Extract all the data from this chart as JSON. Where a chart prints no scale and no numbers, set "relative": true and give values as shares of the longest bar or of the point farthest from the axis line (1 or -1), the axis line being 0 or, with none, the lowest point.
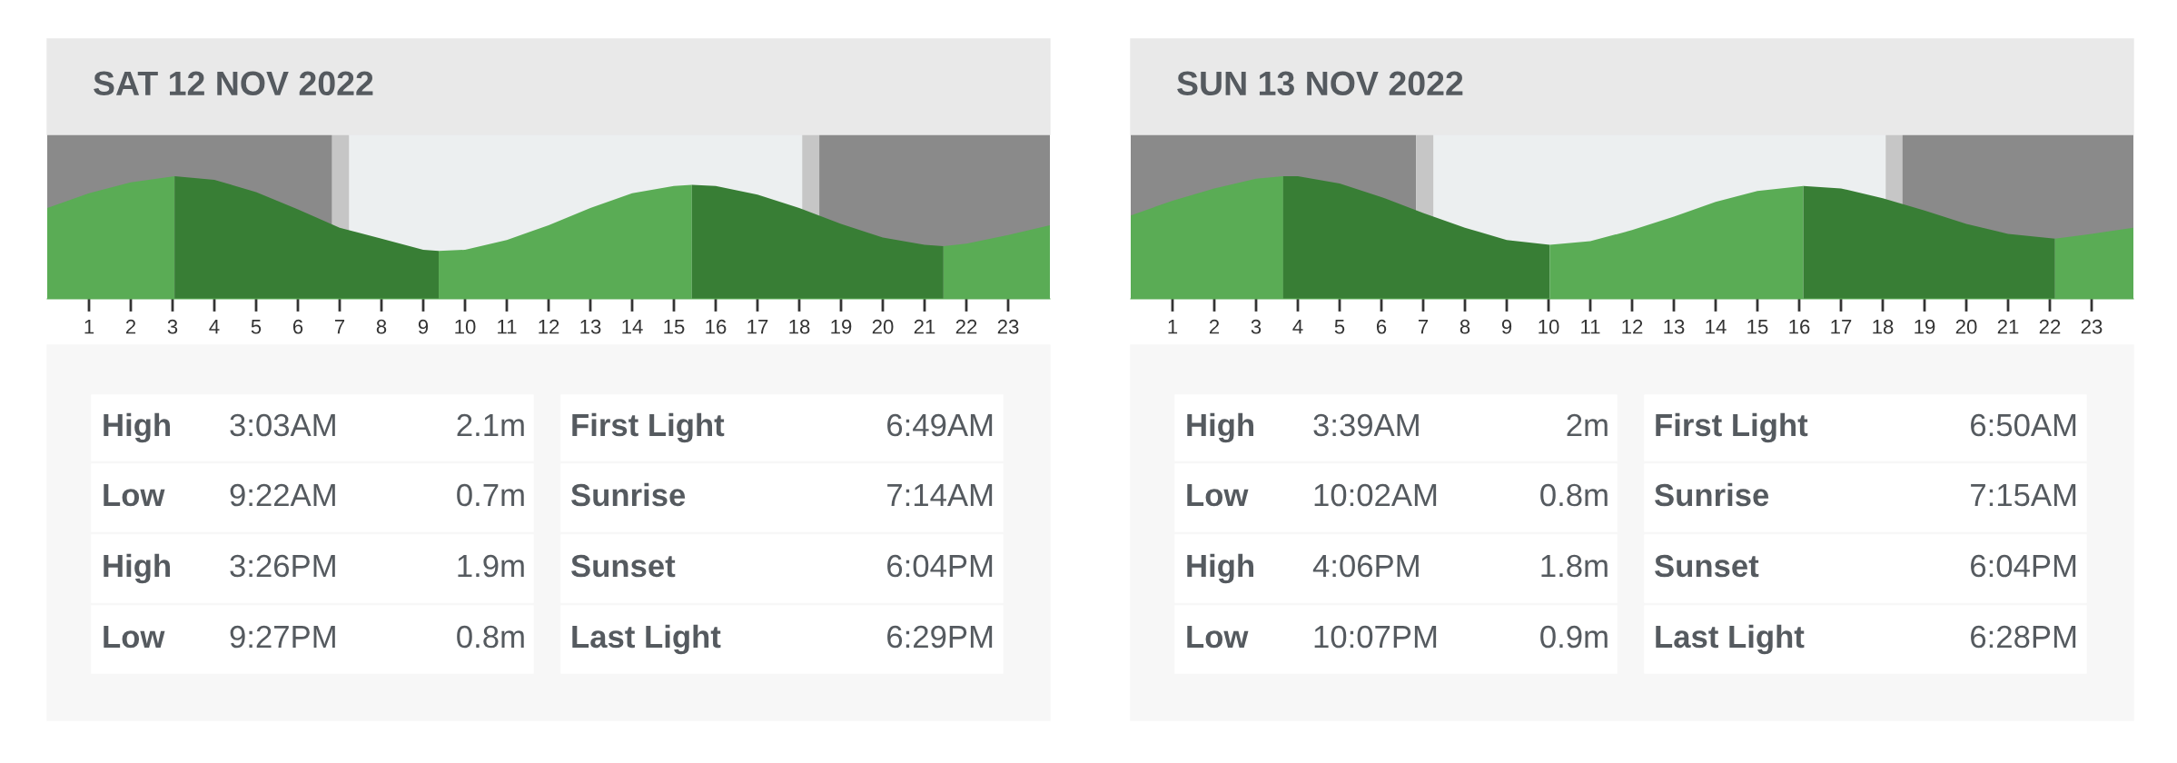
{
  "chart_data": [
    {
      "type": "area",
      "title": "SAT 12 NOV 2022",
      "relative": true,
      "xlim": [
        0,
        24
      ],
      "xticks": [
        1,
        2,
        3,
        4,
        5,
        6,
        7,
        8,
        9,
        10,
        11,
        12,
        13,
        14,
        15,
        16,
        17,
        18,
        19,
        20,
        21,
        22,
        23
      ],
      "tick_labels": "x",
      "series": [
        {
          "color": "#5aac55",
          "x": [
            0,
            1,
            2,
            3.05
          ],
          "values": [
            0.74,
            0.86,
            0.95,
            1
          ]
        },
        {
          "color": "#387e35",
          "x": [
            3.05,
            4,
            5,
            6,
            7,
            8,
            9,
            9.37
          ],
          "values": [
            1,
            0.97,
            0.87,
            0.73,
            0.58,
            0.49,
            0.4,
            0.39
          ]
        },
        {
          "color": "#5aac55",
          "x": [
            9.37,
            10,
            11,
            12,
            13,
            14,
            15,
            15.43
          ],
          "values": [
            0.39,
            0.4,
            0.48,
            0.6,
            0.74,
            0.86,
            0.92,
            0.93
          ]
        },
        {
          "color": "#387e35",
          "x": [
            15.43,
            16,
            17,
            18,
            19,
            20,
            21,
            21.45
          ],
          "values": [
            0.93,
            0.92,
            0.85,
            0.74,
            0.61,
            0.5,
            0.44,
            0.43
          ]
        },
        {
          "color": "#5aac55",
          "x": [
            21.45,
            22,
            23,
            24
          ],
          "values": [
            0.43,
            0.45,
            0.52,
            0.6
          ]
        }
      ],
      "bands": [
        {
          "axis": "x",
          "from": 0,
          "to": 6.82,
          "color": "#8a8a8a"
        },
        {
          "axis": "x",
          "from": 6.82,
          "to": 7.23,
          "color": "#c6c6c6"
        },
        {
          "axis": "x",
          "from": 7.23,
          "to": 18.07,
          "color": "#eceff0"
        },
        {
          "axis": "x",
          "from": 18.07,
          "to": 18.48,
          "color": "#c6c6c6"
        },
        {
          "axis": "x",
          "from": 18.48,
          "to": 24,
          "color": "#8a8a8a"
        }
      ],
      "annotations": [
        "High",
        "3:03AM",
        "2.1m",
        "Low",
        "9:22AM",
        "0.7m",
        "High",
        "3:26PM",
        "1.9m",
        "Low",
        "9:27PM",
        "0.8m",
        "First Light",
        "6:49AM",
        "Sunrise",
        "7:14AM",
        "Sunset",
        "6:04PM",
        "Last Light",
        "6:29PM"
      ]
    },
    {
      "type": "area",
      "title": "SUN 13 NOV 2022",
      "relative": true,
      "xlim": [
        0,
        24
      ],
      "xticks": [
        1,
        2,
        3,
        4,
        5,
        6,
        7,
        8,
        9,
        10,
        11,
        12,
        13,
        14,
        15,
        16,
        17,
        18,
        19,
        20,
        21,
        22,
        23
      ],
      "tick_labels": "x",
      "series": [
        {
          "color": "#5aac55",
          "x": [
            0,
            1,
            2,
            3,
            3.65
          ],
          "values": [
            0.68,
            0.8,
            0.9,
            0.98,
            1
          ]
        },
        {
          "color": "#387e35",
          "x": [
            3.65,
            4,
            5,
            6,
            7,
            8,
            9,
            10.03
          ],
          "values": [
            1,
            1,
            0.94,
            0.83,
            0.7,
            0.58,
            0.48,
            0.44
          ]
        },
        {
          "color": "#5aac55",
          "x": [
            10.03,
            11,
            12,
            13,
            14,
            15,
            16.1
          ],
          "values": [
            0.44,
            0.47,
            0.56,
            0.67,
            0.79,
            0.88,
            0.92
          ]
        },
        {
          "color": "#387e35",
          "x": [
            16.1,
            17,
            18,
            19,
            20,
            21,
            22.12
          ],
          "values": [
            0.92,
            0.9,
            0.82,
            0.72,
            0.61,
            0.53,
            0.49
          ]
        },
        {
          "color": "#5aac55",
          "x": [
            22.12,
            23,
            24
          ],
          "values": [
            0.49,
            0.53,
            0.58
          ]
        }
      ],
      "bands": [
        {
          "axis": "x",
          "from": 0,
          "to": 6.83,
          "color": "#8a8a8a"
        },
        {
          "axis": "x",
          "from": 6.83,
          "to": 7.25,
          "color": "#c6c6c6"
        },
        {
          "axis": "x",
          "from": 7.25,
          "to": 18.07,
          "color": "#eceff0"
        },
        {
          "axis": "x",
          "from": 18.07,
          "to": 18.47,
          "color": "#c6c6c6"
        },
        {
          "axis": "x",
          "from": 18.47,
          "to": 24,
          "color": "#8a8a8a"
        }
      ],
      "annotations": [
        "High",
        "3:39AM",
        "2m",
        "Low",
        "10:02AM",
        "0.8m",
        "High",
        "4:06PM",
        "1.8m",
        "Low",
        "10:07PM",
        "0.9m",
        "First Light",
        "6:50AM",
        "Sunrise",
        "7:15AM",
        "Sunset",
        "6:04PM",
        "Last Light",
        "6:28PM"
      ]
    }
  ]
}
